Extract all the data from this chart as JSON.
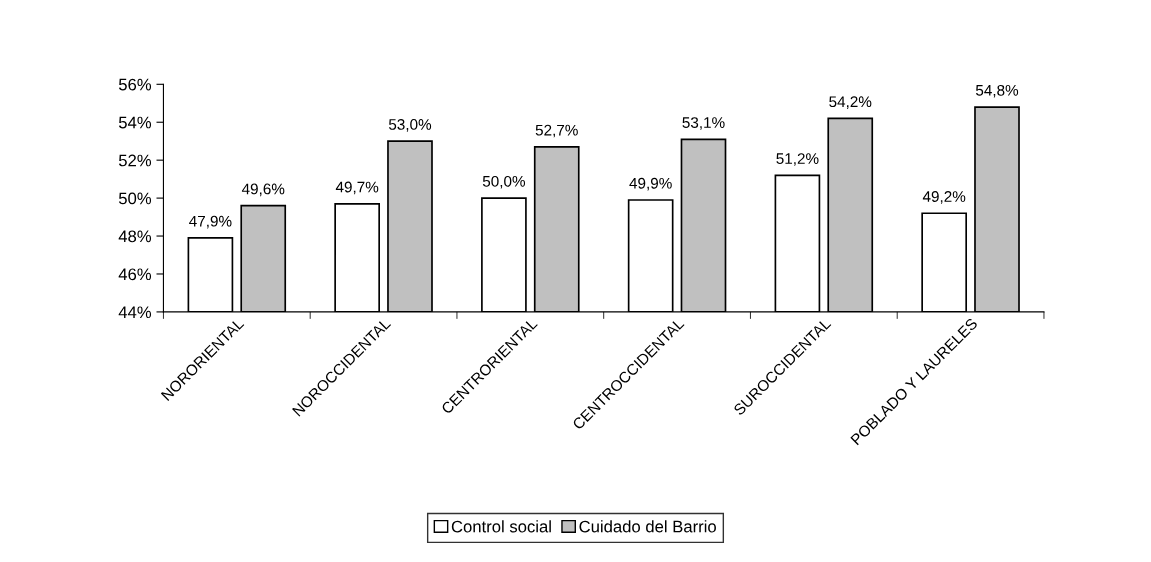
{
  "chart_data": {
    "type": "bar",
    "categories": [
      "NORORIENTAL",
      "NOROCCIDENTAL",
      "CENTRORIENTAL",
      "CENTROCCIDENTAL",
      "SUROCCIDENTAL",
      "POBLADO Y LAURELES"
    ],
    "series": [
      {
        "name": "Control social",
        "color": "#ffffff",
        "values": [
          47.9,
          49.7,
          50.0,
          49.9,
          51.2,
          49.2
        ],
        "value_labels": [
          "47,9%",
          "49,7%",
          "50,0%",
          "49,9%",
          "51,2%",
          "49,2%"
        ]
      },
      {
        "name": "Cuidado del Barrio",
        "color": "#c0c0c0",
        "values": [
          49.6,
          53.0,
          52.7,
          53.1,
          54.2,
          54.8
        ],
        "value_labels": [
          "49,6%",
          "53,0%",
          "52,7%",
          "53,1%",
          "54,2%",
          "54,8%"
        ]
      }
    ],
    "ylim": [
      44,
      56
    ],
    "yticks": [
      {
        "value": 44,
        "label": "44%"
      },
      {
        "value": 46,
        "label": "46%"
      },
      {
        "value": 48,
        "label": "48%"
      },
      {
        "value": 50,
        "label": "50%"
      },
      {
        "value": 52,
        "label": "52%"
      },
      {
        "value": 54,
        "label": "54%"
      },
      {
        "value": 56,
        "label": "56%"
      }
    ],
    "grid": false,
    "legend": "bottom"
  }
}
